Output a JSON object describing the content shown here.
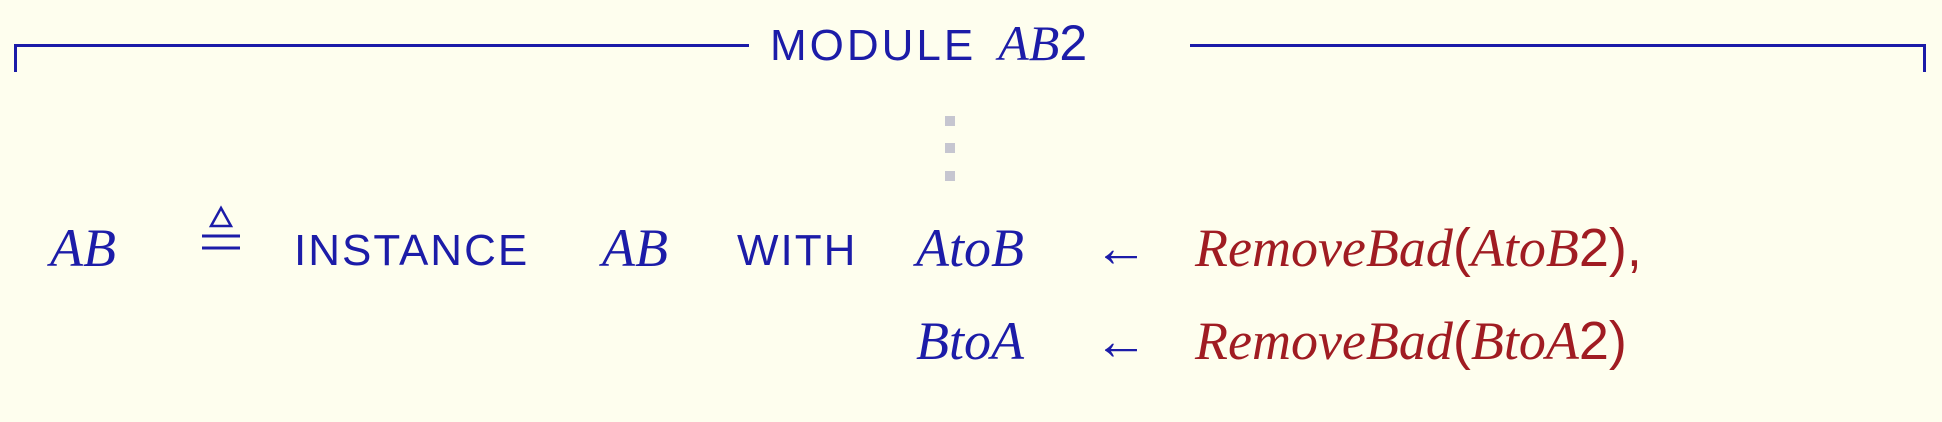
{
  "module": {
    "keyword": "MODULE",
    "name_italic": "AB",
    "name_suffix": "2"
  },
  "definition": {
    "lhs": "AB",
    "defeq_symbol": "≜",
    "instance_keyword": "INSTANCE",
    "instance_module": "AB",
    "with_keyword": "WITH",
    "substitutions": [
      {
        "var": "AtoB",
        "arrow": "←",
        "func": "RemoveBad",
        "open": "(",
        "arg_italic": "AtoB",
        "arg_suffix": "2",
        "close": ")",
        "trailer": ","
      },
      {
        "var": "BtoA",
        "arrow": "←",
        "func": "RemoveBad",
        "open": "(",
        "arg_italic": "BtoA",
        "arg_suffix": "2",
        "close": ")",
        "trailer": ""
      }
    ]
  },
  "colors": {
    "keyword_blue": "#1c1ca8",
    "operator_red": "#a01c22",
    "background": "#fefeee",
    "ellipsis_gray": "#c6c6d0"
  }
}
